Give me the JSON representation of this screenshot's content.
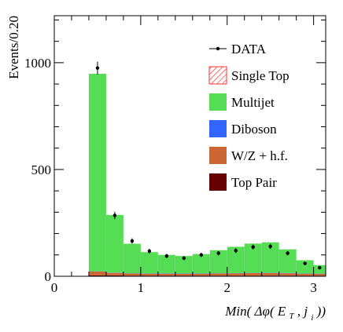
{
  "chart_data": {
    "type": "bar",
    "stacked": true,
    "xlabel": "Min( Δφ( E̸T , j ))",
    "xlabel_parts": {
      "prefix": "Min( Δφ(",
      "met": "E",
      "met_sub": "T",
      "jet": "j",
      "jet_sub": "i",
      "suffix": "))"
    },
    "ylabel": "Events/0.20",
    "xlim": [
      0,
      3.14
    ],
    "ylim": [
      0,
      1220
    ],
    "x_ticks": [
      0,
      1,
      2,
      3
    ],
    "y_ticks": [
      0,
      500,
      1000
    ],
    "bin_edges": [
      0.4,
      0.6,
      0.8,
      1.0,
      1.2,
      1.4,
      1.6,
      1.8,
      2.0,
      2.2,
      2.4,
      2.6,
      2.8,
      3.0,
      3.14
    ],
    "series": [
      {
        "name": "Top Pair",
        "color": "#660000",
        "values": [
          4,
          4,
          3,
          3,
          3,
          3,
          3,
          3,
          3,
          3,
          3,
          3,
          3,
          3
        ]
      },
      {
        "name": "W/Z + h.f.",
        "color": "#cc6633",
        "values": [
          18,
          12,
          10,
          9,
          9,
          9,
          9,
          10,
          11,
          12,
          12,
          11,
          9,
          8
        ]
      },
      {
        "name": "Diboson",
        "color": "#3366ff",
        "values": [
          1,
          1,
          1,
          1,
          1,
          1,
          1,
          1,
          1,
          1,
          1,
          1,
          1,
          1
        ]
      },
      {
        "name": "Multijet",
        "color": "#55dd55",
        "values": [
          925,
          270,
          138,
          100,
          87,
          82,
          91,
          108,
          123,
          137,
          143,
          111,
          62,
          40
        ]
      },
      {
        "name": "Single Top",
        "color": "#ff3333",
        "hatched": true,
        "values": [
          1,
          1,
          1,
          1,
          1,
          1,
          1,
          1,
          1,
          1,
          1,
          1,
          1,
          1
        ]
      }
    ],
    "data_points": {
      "name": "DATA",
      "x": [
        0.5,
        0.7,
        0.9,
        1.1,
        1.3,
        1.5,
        1.7,
        1.9,
        2.1,
        2.3,
        2.5,
        2.7,
        2.9,
        3.07
      ],
      "y": [
        975,
        285,
        165,
        118,
        95,
        85,
        100,
        108,
        120,
        137,
        140,
        108,
        60,
        40
      ],
      "err": [
        30,
        17,
        13,
        11,
        10,
        9,
        10,
        10,
        11,
        12,
        12,
        10,
        8,
        6
      ]
    },
    "legend": {
      "placement": "top-right",
      "entries": [
        {
          "label": "DATA",
          "kind": "marker",
          "color": "#000000"
        },
        {
          "label": "Single Top",
          "kind": "hatched",
          "color": "#ff3333"
        },
        {
          "label": "Multijet",
          "kind": "fill",
          "color": "#55dd55"
        },
        {
          "label": "Diboson",
          "kind": "fill",
          "color": "#3366ff"
        },
        {
          "label": "W/Z + h.f.",
          "kind": "fill",
          "color": "#cc6633"
        },
        {
          "label": "Top Pair",
          "kind": "fill",
          "color": "#660000"
        }
      ]
    }
  }
}
